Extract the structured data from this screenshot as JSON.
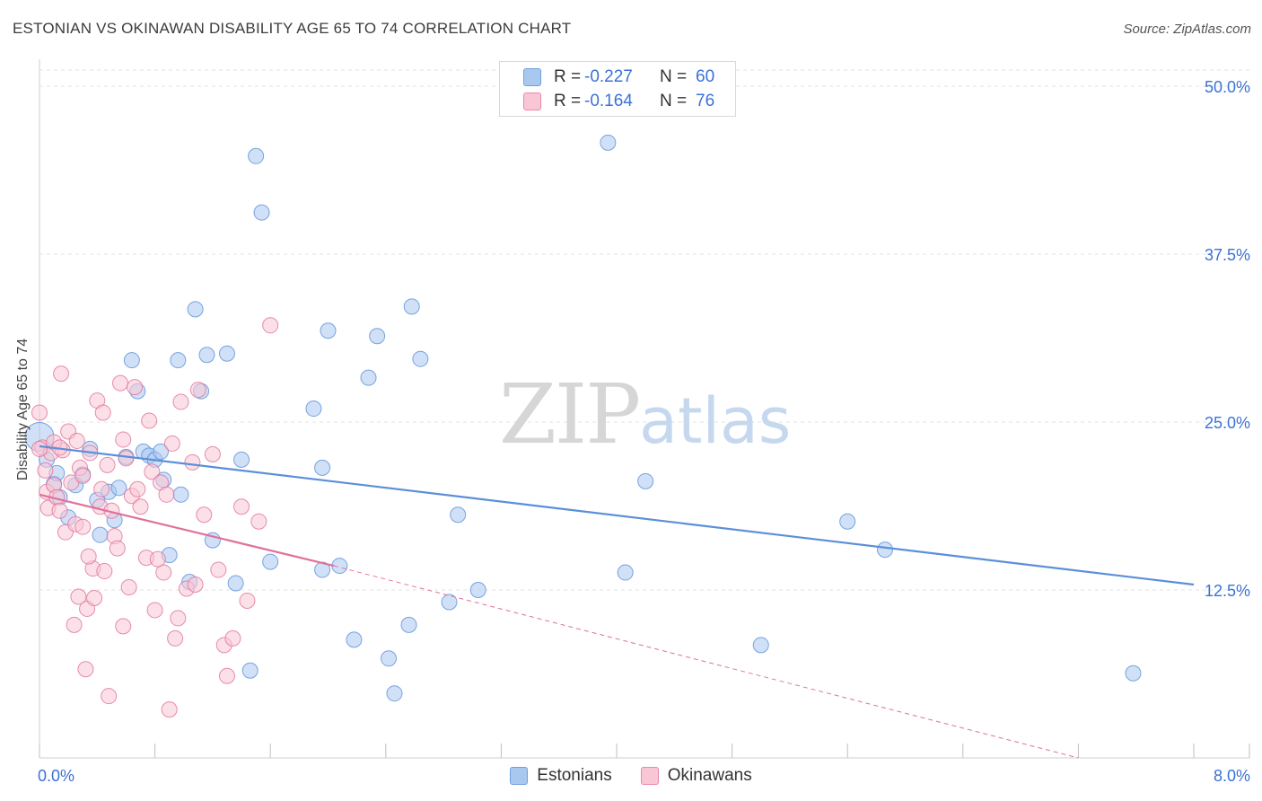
{
  "header": {
    "title": "ESTONIAN VS OKINAWAN DISABILITY AGE 65 TO 74 CORRELATION CHART",
    "source": "Source: ZipAtlas.com"
  },
  "watermark": {
    "zip": "ZIP",
    "atlas": "atlas"
  },
  "stats": {
    "rows": [
      {
        "r_label": "R =",
        "r_value": "-0.227",
        "n_label": "N =",
        "n_value": "60",
        "color": "#a9c8f0"
      },
      {
        "r_label": "R =",
        "r_value": "-0.164",
        "n_label": "N =",
        "n_value": "76",
        "color": "#f5b8cc"
      }
    ]
  },
  "legend": {
    "items": [
      {
        "label": "Estonians",
        "color": "#a9c8f0",
        "border": "#6e9fe0"
      },
      {
        "label": "Okinawans",
        "color": "#f9c6d5",
        "border": "#e88aa8"
      }
    ]
  },
  "chart_data": {
    "type": "scatter",
    "title": "ESTONIAN VS OKINAWAN DISABILITY AGE 65 TO 74 CORRELATION CHART",
    "xlabel": "",
    "ylabel": "Disability Age 65 to 74",
    "xlim": [
      0,
      8.4
    ],
    "ylim": [
      0,
      50
    ],
    "x_ticks": [
      0,
      0.8,
      1.6,
      2.4,
      3.2,
      4.0,
      4.8,
      5.6,
      6.4,
      7.2,
      8.0,
      8.4
    ],
    "x_tick_labels": {
      "start": "0.0%",
      "end": "8.0%"
    },
    "y_ticks": [
      12.5,
      25.0,
      37.5,
      50.0
    ],
    "y_tick_labels": [
      "12.5%",
      "25.0%",
      "37.5%",
      "50.0%"
    ],
    "grid": true,
    "legend_position": "bottom-center",
    "series": [
      {
        "name": "Estonians",
        "color": "#5b8fd9",
        "fill": "#a9c8f0",
        "trend": {
          "x": [
            0.0,
            8.0
          ],
          "y": [
            23.2,
            12.9
          ],
          "extend_dashed_to": null
        },
        "points": [
          [
            0.0,
            23.9
          ],
          [
            0.05,
            22.2
          ],
          [
            0.1,
            20.4
          ],
          [
            0.12,
            21.2
          ],
          [
            0.14,
            19.4
          ],
          [
            0.2,
            17.9
          ],
          [
            0.25,
            20.3
          ],
          [
            0.3,
            21.1
          ],
          [
            0.35,
            23.0
          ],
          [
            0.4,
            19.2
          ],
          [
            0.42,
            16.6
          ],
          [
            0.48,
            19.8
          ],
          [
            0.52,
            17.7
          ],
          [
            0.55,
            20.1
          ],
          [
            0.6,
            22.4
          ],
          [
            0.64,
            29.6
          ],
          [
            0.68,
            27.3
          ],
          [
            0.72,
            22.8
          ],
          [
            0.76,
            22.5
          ],
          [
            0.8,
            22.2
          ],
          [
            0.84,
            22.8
          ],
          [
            0.86,
            20.7
          ],
          [
            0.9,
            15.1
          ],
          [
            0.96,
            29.6
          ],
          [
            0.98,
            19.6
          ],
          [
            1.04,
            13.1
          ],
          [
            1.08,
            33.4
          ],
          [
            1.12,
            27.3
          ],
          [
            1.16,
            30.0
          ],
          [
            1.2,
            16.2
          ],
          [
            1.3,
            30.1
          ],
          [
            1.36,
            13.0
          ],
          [
            1.4,
            22.2
          ],
          [
            1.46,
            6.5
          ],
          [
            1.5,
            44.8
          ],
          [
            1.54,
            40.6
          ],
          [
            1.6,
            14.6
          ],
          [
            1.9,
            26.0
          ],
          [
            1.96,
            21.6
          ],
          [
            1.96,
            14.0
          ],
          [
            2.0,
            31.8
          ],
          [
            2.08,
            14.3
          ],
          [
            2.18,
            8.8
          ],
          [
            2.28,
            28.3
          ],
          [
            2.34,
            31.4
          ],
          [
            2.42,
            7.4
          ],
          [
            2.46,
            4.8
          ],
          [
            2.56,
            9.9
          ],
          [
            2.58,
            33.6
          ],
          [
            2.64,
            29.7
          ],
          [
            2.84,
            11.6
          ],
          [
            2.9,
            18.1
          ],
          [
            3.04,
            12.5
          ],
          [
            3.94,
            45.8
          ],
          [
            4.06,
            13.8
          ],
          [
            4.2,
            20.6
          ],
          [
            5.0,
            8.4
          ],
          [
            5.6,
            17.6
          ],
          [
            5.86,
            15.5
          ],
          [
            7.58,
            6.3
          ]
        ]
      },
      {
        "name": "Okinawans",
        "color": "#e0729a",
        "fill": "#f9c6d5",
        "trend": {
          "x": [
            0.0,
            2.04
          ],
          "y": [
            19.6,
            14.3
          ],
          "extend_dashed_to": [
            7.2,
            0.0
          ]
        },
        "points": [
          [
            0.0,
            25.7
          ],
          [
            0.02,
            23.1
          ],
          [
            0.04,
            21.4
          ],
          [
            0.05,
            19.8
          ],
          [
            0.06,
            18.6
          ],
          [
            0.08,
            22.7
          ],
          [
            0.1,
            20.3
          ],
          [
            0.12,
            19.4
          ],
          [
            0.14,
            18.4
          ],
          [
            0.15,
            28.6
          ],
          [
            0.16,
            22.9
          ],
          [
            0.18,
            16.8
          ],
          [
            0.2,
            24.3
          ],
          [
            0.22,
            20.5
          ],
          [
            0.24,
            9.9
          ],
          [
            0.25,
            17.4
          ],
          [
            0.26,
            23.6
          ],
          [
            0.27,
            12.0
          ],
          [
            0.28,
            21.6
          ],
          [
            0.3,
            17.2
          ],
          [
            0.32,
            6.6
          ],
          [
            0.33,
            11.1
          ],
          [
            0.35,
            22.7
          ],
          [
            0.37,
            14.1
          ],
          [
            0.38,
            11.9
          ],
          [
            0.4,
            26.6
          ],
          [
            0.42,
            18.7
          ],
          [
            0.43,
            20.0
          ],
          [
            0.45,
            13.9
          ],
          [
            0.47,
            21.8
          ],
          [
            0.48,
            4.6
          ],
          [
            0.5,
            18.4
          ],
          [
            0.52,
            16.5
          ],
          [
            0.54,
            15.6
          ],
          [
            0.56,
            27.9
          ],
          [
            0.58,
            23.7
          ],
          [
            0.6,
            22.3
          ],
          [
            0.62,
            12.7
          ],
          [
            0.64,
            19.5
          ],
          [
            0.66,
            27.6
          ],
          [
            0.7,
            18.7
          ],
          [
            0.74,
            14.9
          ],
          [
            0.78,
            21.3
          ],
          [
            0.8,
            11.0
          ],
          [
            0.84,
            20.5
          ],
          [
            0.86,
            13.8
          ],
          [
            0.9,
            3.6
          ],
          [
            0.94,
            8.9
          ],
          [
            0.98,
            26.5
          ],
          [
            1.02,
            12.6
          ],
          [
            1.06,
            22.0
          ],
          [
            1.1,
            27.4
          ],
          [
            1.14,
            18.1
          ],
          [
            1.2,
            22.6
          ],
          [
            1.28,
            8.4
          ],
          [
            1.3,
            6.1
          ],
          [
            1.34,
            8.9
          ],
          [
            1.4,
            18.7
          ],
          [
            1.44,
            11.7
          ],
          [
            1.52,
            17.6
          ],
          [
            1.6,
            32.2
          ],
          [
            0.0,
            23.0
          ],
          [
            0.1,
            23.5
          ],
          [
            0.14,
            23.1
          ],
          [
            0.3,
            21.0
          ],
          [
            0.34,
            15.0
          ],
          [
            0.44,
            25.7
          ],
          [
            0.58,
            9.8
          ],
          [
            0.68,
            20.0
          ],
          [
            0.76,
            25.1
          ],
          [
            0.82,
            14.8
          ],
          [
            0.88,
            19.6
          ],
          [
            0.92,
            23.4
          ],
          [
            0.96,
            10.4
          ],
          [
            1.08,
            12.9
          ],
          [
            1.24,
            14.0
          ]
        ]
      }
    ]
  }
}
